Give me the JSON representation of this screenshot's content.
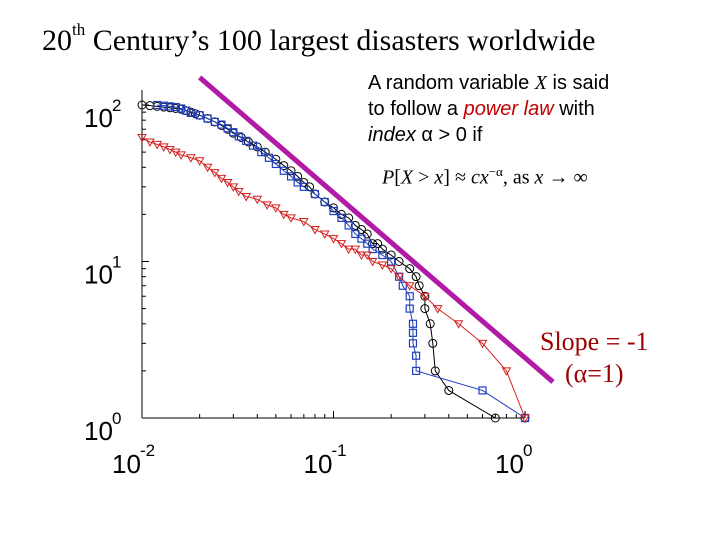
{
  "title": {
    "prefix": "20",
    "sup": "th",
    "rest": " Century’s 100 largest disasters worldwide"
  },
  "note": {
    "line1_pre": "A random variable ",
    "var": "X",
    "line1_post": " is said",
    "line2_pre": "to follow a ",
    "power_law": "power law",
    "line2_post": " with",
    "line3_idx": "index",
    "line3_alpha": "α",
    "line3_cond": " > 0 if"
  },
  "formula": {
    "p": "P",
    "lb": "[",
    "x": "X",
    "gt": " > ",
    "x2": "x",
    "rb": "]",
    "approx": " ≈ ",
    "c": "c",
    "x3": "x",
    "exp": "−α",
    "comma": ",  as ",
    "x4": "x",
    "arrow": " → ∞"
  },
  "slope": {
    "line1": "Slope = -1",
    "line2": "(α=1)"
  },
  "colors": {
    "black": "#000000",
    "blue": "#1f3fbf",
    "red": "#d62020",
    "purple": "#b01aa5"
  },
  "chart_data": {
    "type": "scatter",
    "xscale": "log",
    "yscale": "log",
    "xlim": [
      0.01,
      1
    ],
    "ylim": [
      1,
      100
    ],
    "x_ticks": [
      {
        "base": "10",
        "exp": "-2"
      },
      {
        "base": "10",
        "exp": "-1"
      },
      {
        "base": "10",
        "exp": "0"
      }
    ],
    "y_ticks": [
      {
        "base": "10",
        "exp": "0"
      },
      {
        "base": "10",
        "exp": "1"
      },
      {
        "base": "10",
        "exp": "2"
      }
    ],
    "reference_line": {
      "slope": -1,
      "points": [
        [
          0.02,
          150
        ],
        [
          1.4,
          1.7
        ]
      ],
      "color": "#b01aa5"
    },
    "series": [
      {
        "color": "#000000",
        "marker": "circle",
        "points": [
          [
            0.01,
            100
          ],
          [
            0.011,
            99
          ],
          [
            0.012,
            98
          ],
          [
            0.013,
            97
          ],
          [
            0.014,
            96
          ],
          [
            0.015,
            95
          ],
          [
            0.016,
            94
          ],
          [
            0.017,
            92
          ],
          [
            0.018,
            90
          ],
          [
            0.019,
            88
          ],
          [
            0.02,
            86
          ],
          [
            0.022,
            82
          ],
          [
            0.024,
            78
          ],
          [
            0.026,
            74
          ],
          [
            0.028,
            70
          ],
          [
            0.03,
            66
          ],
          [
            0.033,
            62
          ],
          [
            0.036,
            58
          ],
          [
            0.04,
            54
          ],
          [
            0.044,
            50
          ],
          [
            0.05,
            45
          ],
          [
            0.055,
            41
          ],
          [
            0.06,
            38
          ],
          [
            0.065,
            35
          ],
          [
            0.07,
            32
          ],
          [
            0.075,
            30
          ],
          [
            0.08,
            27
          ],
          [
            0.09,
            24
          ],
          [
            0.1,
            22
          ],
          [
            0.11,
            20
          ],
          [
            0.12,
            19
          ],
          [
            0.13,
            17
          ],
          [
            0.14,
            16
          ],
          [
            0.15,
            15
          ],
          [
            0.16,
            13
          ],
          [
            0.17,
            13
          ],
          [
            0.18,
            12
          ],
          [
            0.2,
            11
          ],
          [
            0.22,
            10
          ],
          [
            0.25,
            9
          ],
          [
            0.27,
            8
          ],
          [
            0.28,
            7
          ],
          [
            0.3,
            6
          ],
          [
            0.3,
            5
          ],
          [
            0.32,
            4
          ],
          [
            0.33,
            3
          ],
          [
            0.34,
            2
          ],
          [
            0.4,
            1.5
          ],
          [
            0.7,
            1
          ],
          [
            1,
            1
          ]
        ]
      },
      {
        "color": "#1f3fbf",
        "marker": "square",
        "points": [
          [
            0.012,
            100
          ],
          [
            0.013,
            99
          ],
          [
            0.014,
            98
          ],
          [
            0.015,
            97
          ],
          [
            0.016,
            95
          ],
          [
            0.017,
            92
          ],
          [
            0.018,
            89
          ],
          [
            0.02,
            86
          ],
          [
            0.022,
            82
          ],
          [
            0.024,
            78
          ],
          [
            0.026,
            75
          ],
          [
            0.028,
            71
          ],
          [
            0.03,
            67
          ],
          [
            0.032,
            63
          ],
          [
            0.035,
            59
          ],
          [
            0.038,
            55
          ],
          [
            0.042,
            50
          ],
          [
            0.046,
            46
          ],
          [
            0.05,
            42
          ],
          [
            0.055,
            38
          ],
          [
            0.06,
            35
          ],
          [
            0.065,
            32
          ],
          [
            0.07,
            30
          ],
          [
            0.08,
            27
          ],
          [
            0.09,
            24
          ],
          [
            0.1,
            21
          ],
          [
            0.11,
            19
          ],
          [
            0.12,
            17
          ],
          [
            0.13,
            15
          ],
          [
            0.14,
            14
          ],
          [
            0.15,
            13
          ],
          [
            0.16,
            12
          ],
          [
            0.18,
            11
          ],
          [
            0.2,
            10
          ],
          [
            0.22,
            8
          ],
          [
            0.23,
            7
          ],
          [
            0.25,
            6
          ],
          [
            0.25,
            5
          ],
          [
            0.26,
            4
          ],
          [
            0.26,
            3.5
          ],
          [
            0.26,
            3
          ],
          [
            0.27,
            2.5
          ],
          [
            0.27,
            2
          ],
          [
            0.6,
            1.5
          ],
          [
            1,
            1
          ]
        ]
      },
      {
        "color": "#d62020",
        "marker": "triangle-down",
        "points": [
          [
            0.01,
            62
          ],
          [
            0.011,
            58
          ],
          [
            0.012,
            56
          ],
          [
            0.013,
            54
          ],
          [
            0.014,
            52
          ],
          [
            0.015,
            50
          ],
          [
            0.016,
            48
          ],
          [
            0.018,
            46
          ],
          [
            0.02,
            44
          ],
          [
            0.022,
            40
          ],
          [
            0.024,
            37
          ],
          [
            0.026,
            34
          ],
          [
            0.028,
            32
          ],
          [
            0.03,
            30
          ],
          [
            0.032,
            28
          ],
          [
            0.035,
            26
          ],
          [
            0.04,
            25
          ],
          [
            0.045,
            23
          ],
          [
            0.05,
            22
          ],
          [
            0.055,
            20
          ],
          [
            0.06,
            19
          ],
          [
            0.07,
            18
          ],
          [
            0.08,
            16
          ],
          [
            0.09,
            15
          ],
          [
            0.1,
            14
          ],
          [
            0.11,
            13
          ],
          [
            0.12,
            12
          ],
          [
            0.13,
            12
          ],
          [
            0.14,
            11
          ],
          [
            0.15,
            11
          ],
          [
            0.16,
            10
          ],
          [
            0.18,
            9.5
          ],
          [
            0.2,
            9
          ],
          [
            0.22,
            8
          ],
          [
            0.25,
            7
          ],
          [
            0.3,
            6
          ],
          [
            0.35,
            5
          ],
          [
            0.45,
            4
          ],
          [
            0.6,
            3
          ],
          [
            0.8,
            2
          ],
          [
            1,
            1
          ]
        ]
      }
    ]
  }
}
